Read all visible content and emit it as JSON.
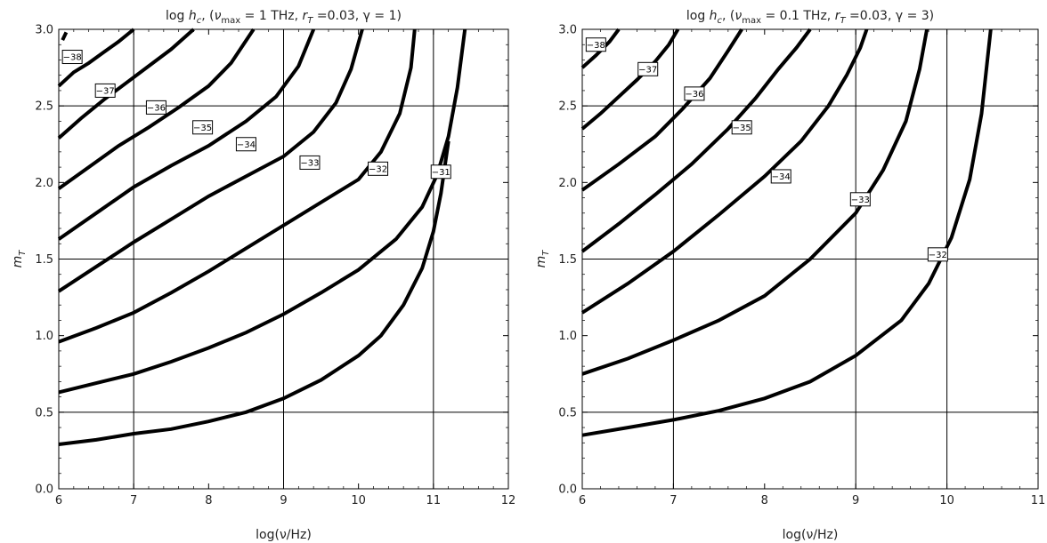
{
  "chart_data": [
    {
      "type": "line",
      "title": "log h_c, (ν_max = 1 THz, r_T =0.03, γ = 1)",
      "title_parts": {
        "pre": "log h",
        "sub1": "c",
        "mid1": ", (",
        "nu": "ν",
        "sub2": "max",
        "mid2": " = 1 THz, r",
        "sub3": "T",
        "mid3": " =0.03, γ = 1)"
      },
      "xlabel": "log(ν/Hz)",
      "ylabel": "m_T",
      "ylabel_parts": {
        "base": "m",
        "sub": "T"
      },
      "xlim": [
        6,
        12
      ],
      "ylim": [
        0,
        3
      ],
      "xticks": [
        "6",
        "7",
        "8",
        "9",
        "10",
        "11",
        "12"
      ],
      "yticks": [
        "0.0",
        "0.5",
        "1.0",
        "1.5",
        "2.0",
        "2.5",
        "3.0"
      ],
      "xgrid": [
        7,
        9,
        11
      ],
      "ygrid": [
        0.5,
        1.5,
        2.5
      ],
      "series": [
        {
          "label": "-38",
          "x": [
            6.05,
            6.1
          ],
          "y": [
            2.93,
            2.98
          ],
          "label_pos": [
            6.18,
            2.82
          ]
        },
        {
          "label": "-37",
          "x": [
            6.0,
            6.2,
            6.4,
            6.6,
            6.8,
            7.0
          ],
          "y": [
            2.63,
            2.72,
            2.78,
            2.85,
            2.92,
            3.0
          ],
          "label_pos": [
            6.62,
            2.6
          ]
        },
        {
          "label": "-36",
          "x": [
            6.0,
            6.3,
            6.6,
            6.9,
            7.2,
            7.5,
            7.8
          ],
          "y": [
            2.29,
            2.42,
            2.54,
            2.65,
            2.76,
            2.87,
            3.0
          ],
          "label_pos": [
            7.3,
            2.49
          ]
        },
        {
          "label": "-35",
          "x": [
            6.0,
            6.4,
            6.8,
            7.2,
            7.6,
            8.0,
            8.3,
            8.6
          ],
          "y": [
            1.96,
            2.1,
            2.24,
            2.36,
            2.49,
            2.63,
            2.78,
            3.0
          ],
          "label_pos": [
            7.92,
            2.36
          ]
        },
        {
          "label": "-34",
          "x": [
            6.0,
            6.5,
            7.0,
            7.5,
            8.0,
            8.5,
            8.9,
            9.2,
            9.4
          ],
          "y": [
            1.63,
            1.8,
            1.97,
            2.11,
            2.24,
            2.4,
            2.56,
            2.76,
            3.0
          ],
          "label_pos": [
            8.5,
            2.25
          ]
        },
        {
          "label": "-33",
          "x": [
            6.0,
            6.5,
            7.0,
            7.5,
            8.0,
            8.5,
            9.0,
            9.4,
            9.7,
            9.9,
            10.05
          ],
          "y": [
            1.29,
            1.45,
            1.61,
            1.76,
            1.91,
            2.04,
            2.17,
            2.33,
            2.52,
            2.74,
            3.0
          ],
          "label_pos": [
            9.35,
            2.13
          ]
        },
        {
          "label": "-32",
          "x": [
            6.0,
            6.5,
            7.0,
            7.5,
            8.0,
            8.5,
            9.0,
            9.5,
            10.0,
            10.3,
            10.55,
            10.7,
            10.75
          ],
          "y": [
            0.96,
            1.05,
            1.15,
            1.28,
            1.42,
            1.57,
            1.72,
            1.87,
            2.02,
            2.2,
            2.45,
            2.75,
            3.0
          ],
          "label_pos": [
            10.26,
            2.09
          ]
        },
        {
          "label": "-31",
          "x": [
            6.0,
            6.5,
            7.0,
            7.5,
            8.0,
            8.5,
            9.0,
            9.5,
            10.0,
            10.5,
            10.85,
            11.05,
            11.2,
            11.32,
            11.42
          ],
          "y": [
            0.63,
            0.69,
            0.75,
            0.83,
            0.92,
            1.02,
            1.14,
            1.28,
            1.43,
            1.63,
            1.84,
            2.05,
            2.3,
            2.62,
            3.0
          ],
          "label_pos": [
            11.1,
            2.07
          ]
        },
        {
          "label": "",
          "x": [
            6.0,
            6.5,
            7.0,
            7.5,
            8.0,
            8.5,
            9.0,
            9.5,
            10.0,
            10.3,
            10.6,
            10.85,
            11.0,
            11.1,
            11.2
          ],
          "y": [
            0.29,
            0.32,
            0.36,
            0.39,
            0.44,
            0.5,
            0.59,
            0.71,
            0.87,
            1.0,
            1.2,
            1.44,
            1.68,
            1.93,
            2.27
          ],
          "label_pos": null
        }
      ]
    },
    {
      "type": "line",
      "title": "log h_c, (ν_max = 0.1 THz, r_T =0.03, γ = 3)",
      "title_parts": {
        "pre": "log h",
        "sub1": "c",
        "mid1": ", (",
        "nu": "ν",
        "sub2": "max",
        "mid2": " = 0.1 THz, r",
        "sub3": "T",
        "mid3": " =0.03, γ = 3)"
      },
      "xlabel": "log(ν/Hz)",
      "ylabel": "m_T",
      "ylabel_parts": {
        "base": "m",
        "sub": "T"
      },
      "xlim": [
        6,
        11
      ],
      "ylim": [
        0,
        3
      ],
      "xticks": [
        "6",
        "7",
        "8",
        "9",
        "10",
        "11"
      ],
      "yticks": [
        "0.0",
        "0.5",
        "1.0",
        "1.5",
        "2.0",
        "2.5",
        "3.0"
      ],
      "xgrid": [
        7,
        9,
        10
      ],
      "ygrid": [
        0.5,
        1.5,
        2.5
      ],
      "series": [
        {
          "label": "-38",
          "x": [
            6.0,
            6.15,
            6.3,
            6.4
          ],
          "y": [
            2.75,
            2.83,
            2.92,
            3.0
          ],
          "label_pos": [
            6.15,
            2.9
          ]
        },
        {
          "label": "-37",
          "x": [
            6.0,
            6.2,
            6.4,
            6.6,
            6.8,
            6.95,
            7.05
          ],
          "y": [
            2.35,
            2.45,
            2.56,
            2.67,
            2.79,
            2.9,
            3.0
          ],
          "label_pos": [
            6.72,
            2.74
          ]
        },
        {
          "label": "-36",
          "x": [
            6.0,
            6.4,
            6.8,
            7.1,
            7.4,
            7.6,
            7.75
          ],
          "y": [
            1.95,
            2.12,
            2.3,
            2.48,
            2.68,
            2.86,
            3.0
          ],
          "label_pos": [
            7.23,
            2.58
          ]
        },
        {
          "label": "-35",
          "x": [
            6.0,
            6.4,
            6.8,
            7.2,
            7.6,
            7.9,
            8.15,
            8.35,
            8.5
          ],
          "y": [
            1.55,
            1.73,
            1.92,
            2.12,
            2.35,
            2.55,
            2.74,
            2.88,
            3.0
          ],
          "label_pos": [
            7.75,
            2.36
          ]
        },
        {
          "label": "-34",
          "x": [
            6.0,
            6.5,
            7.0,
            7.5,
            8.0,
            8.4,
            8.7,
            8.9,
            9.05,
            9.12
          ],
          "y": [
            1.15,
            1.34,
            1.55,
            1.79,
            2.04,
            2.27,
            2.5,
            2.7,
            2.88,
            3.0
          ],
          "label_pos": [
            8.18,
            2.04
          ]
        },
        {
          "label": "-33",
          "x": [
            6.0,
            6.5,
            7.0,
            7.5,
            8.0,
            8.5,
            9.0,
            9.3,
            9.55,
            9.7,
            9.78
          ],
          "y": [
            0.75,
            0.85,
            0.97,
            1.1,
            1.26,
            1.5,
            1.8,
            2.08,
            2.4,
            2.74,
            3.0
          ],
          "label_pos": [
            9.05,
            1.89
          ]
        },
        {
          "label": "-32",
          "x": [
            6.0,
            6.5,
            7.0,
            7.5,
            8.0,
            8.5,
            9.0,
            9.5,
            9.8,
            10.05,
            10.25,
            10.38,
            10.48
          ],
          "y": [
            0.35,
            0.4,
            0.45,
            0.51,
            0.59,
            0.7,
            0.87,
            1.1,
            1.34,
            1.64,
            2.02,
            2.45,
            3.0
          ],
          "label_pos": [
            9.9,
            1.53
          ]
        }
      ]
    }
  ]
}
